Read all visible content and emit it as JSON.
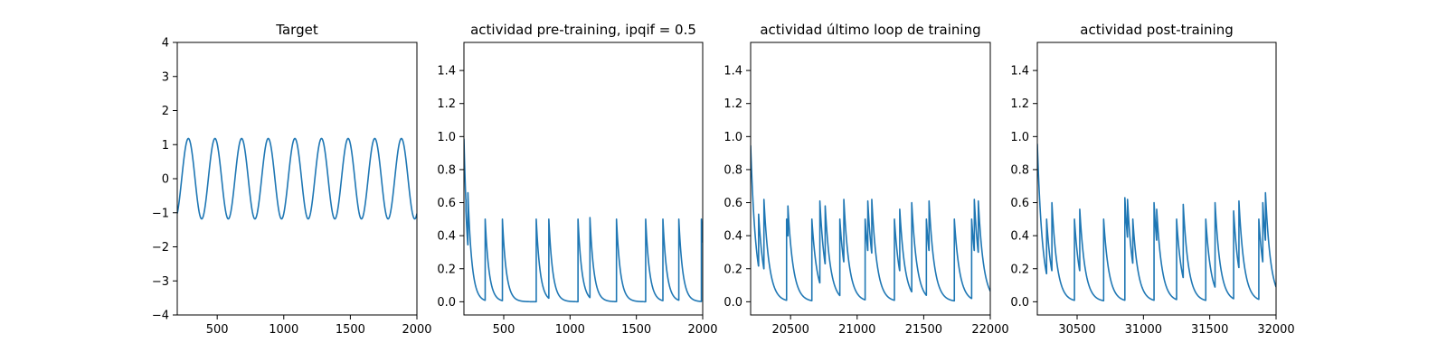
{
  "chart_data": [
    {
      "type": "line",
      "title": "Target",
      "xlim": [
        200,
        2000
      ],
      "ylim": [
        -4,
        4
      ],
      "xticks": [
        500,
        1000,
        1500,
        2000
      ],
      "yticks": [
        -4,
        -3,
        -2,
        -1,
        0,
        1,
        2,
        3,
        4
      ],
      "series": [
        {
          "kind": "sine",
          "x_start": 200,
          "x_end": 2000,
          "amplitude": 1.18,
          "period": 200,
          "phase": 1.05,
          "color": "#1f77b4"
        }
      ]
    },
    {
      "type": "line",
      "title": "actividad pre-training, ipqif = 0.5",
      "xlim": [
        200,
        2000
      ],
      "ylim": [
        -0.08,
        1.57
      ],
      "xticks": [
        500,
        1000,
        1500,
        2000
      ],
      "yticks": [
        0.0,
        0.2,
        0.4,
        0.6,
        0.8,
        1.0,
        1.2,
        1.4
      ],
      "series": [
        {
          "kind": "spikes",
          "x_start": 200,
          "x_end": 2000,
          "tau": 30,
          "initial": 1.02,
          "spike_times": [
            215,
            230,
            360,
            490,
            745,
            840,
            1060,
            1150,
            1350,
            1570,
            1700,
            1820,
            1990
          ],
          "spike_heights": [
            0.55,
            0.66,
            0.5,
            0.5,
            0.5,
            0.5,
            0.5,
            0.51,
            0.5,
            0.5,
            0.5,
            0.5,
            0.5
          ],
          "color": "#1f77b4"
        }
      ]
    },
    {
      "type": "line",
      "title": "actividad último loop de training",
      "xlim": [
        20200,
        22000
      ],
      "ylim": [
        -0.08,
        1.57
      ],
      "xticks": [
        20500,
        21000,
        21500,
        22000
      ],
      "yticks": [
        0.0,
        0.2,
        0.4,
        0.6,
        0.8,
        1.0,
        1.2,
        1.4
      ],
      "series": [
        {
          "kind": "spikes",
          "x_start": 20200,
          "x_end": 22000,
          "tau": 40,
          "initial": 0.97,
          "spike_times": [
            20260,
            20300,
            20470,
            20480,
            20660,
            20720,
            20760,
            20870,
            20900,
            21060,
            21080,
            21110,
            21280,
            21320,
            21410,
            21520,
            21540,
            21730,
            21860,
            21880,
            21910
          ],
          "spike_heights": [
            0.53,
            0.62,
            0.5,
            0.58,
            0.5,
            0.61,
            0.58,
            0.5,
            0.62,
            0.5,
            0.61,
            0.62,
            0.5,
            0.56,
            0.6,
            0.5,
            0.61,
            0.5,
            0.5,
            0.62,
            0.61
          ],
          "color": "#1f77b4"
        }
      ]
    },
    {
      "type": "line",
      "title": "actividad post-training",
      "xlim": [
        30200,
        32000
      ],
      "ylim": [
        -0.08,
        1.57
      ],
      "xticks": [
        30500,
        31000,
        31500,
        32000
      ],
      "yticks": [
        0.0,
        0.2,
        0.4,
        0.6,
        0.8,
        1.0,
        1.2,
        1.4
      ],
      "series": [
        {
          "kind": "spikes",
          "x_start": 30200,
          "x_end": 32000,
          "tau": 40,
          "initial": 0.98,
          "spike_times": [
            30270,
            30310,
            30480,
            30520,
            30700,
            30860,
            30880,
            30920,
            31080,
            31100,
            31250,
            31300,
            31470,
            31540,
            31680,
            31720,
            31870,
            31900,
            31920
          ],
          "spike_heights": [
            0.5,
            0.6,
            0.5,
            0.56,
            0.5,
            0.63,
            0.62,
            0.5,
            0.6,
            0.56,
            0.5,
            0.59,
            0.5,
            0.6,
            0.55,
            0.61,
            0.5,
            0.6,
            0.66
          ],
          "color": "#1f77b4"
        }
      ]
    }
  ]
}
